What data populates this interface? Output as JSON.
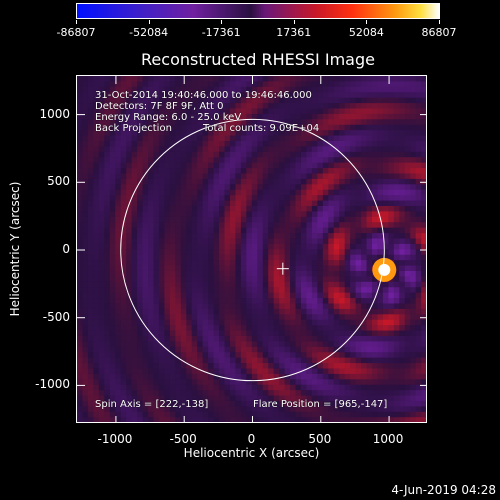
{
  "colorbar": {
    "tick_labels": [
      "-86807",
      "-52084",
      "-17361",
      "17361",
      "52084",
      "86807"
    ]
  },
  "title": "Reconstructed RHESSI Image",
  "annotations": {
    "time_range": "31-Oct-2014 19:40:46.000 to 19:46:46.000",
    "detectors": "Detectors: 7F 8F 9F, Att 0",
    "energy_range": "Energy Range: 6.0 - 25.0 keV",
    "method": "Back Projection",
    "total_counts": "Total counts: 9.09E+04",
    "spin_axis": "Spin Axis = [222,-138]",
    "flare_position": "Flare Position = [965,-147]"
  },
  "axes": {
    "xlabel": "Heliocentric X (arcsec)",
    "ylabel": "Heliocentric Y (arcsec)",
    "xtick_labels": [
      "-1000",
      "-500",
      "0",
      "500",
      "1000"
    ],
    "ytick_labels": [
      "1000",
      "500",
      "0",
      "-500",
      "-1000"
    ]
  },
  "chart_data": {
    "type": "heatmap",
    "title": "Reconstructed RHESSI Image",
    "xlabel": "Heliocentric X (arcsec)",
    "ylabel": "Heliocentric Y (arcsec)",
    "xlim": [
      -1285,
      1285
    ],
    "ylim": [
      -1285,
      1285
    ],
    "colorbar_range": [
      -86807,
      86807
    ],
    "colorbar_ticks": [
      -86807,
      -52084,
      -17361,
      17361,
      52084,
      86807
    ],
    "xticks": [
      -1000,
      -500,
      0,
      500,
      1000
    ],
    "yticks": [
      -1000,
      -500,
      0,
      500,
      1000
    ],
    "peak": {
      "x": 965,
      "y": -147,
      "value": 86807
    },
    "spin_axis": {
      "x": 222,
      "y": -138
    },
    "solar_limb_radius_arcsec": 965,
    "colors": {
      "low": "#0010ff",
      "negative": "#7020a0",
      "zero": "#2a1040",
      "positive": "#c81828",
      "high": "#ff9a10",
      "max": "#ffffff"
    }
  },
  "footer": {
    "timestamp": "4-Jun-2019 04:28"
  }
}
